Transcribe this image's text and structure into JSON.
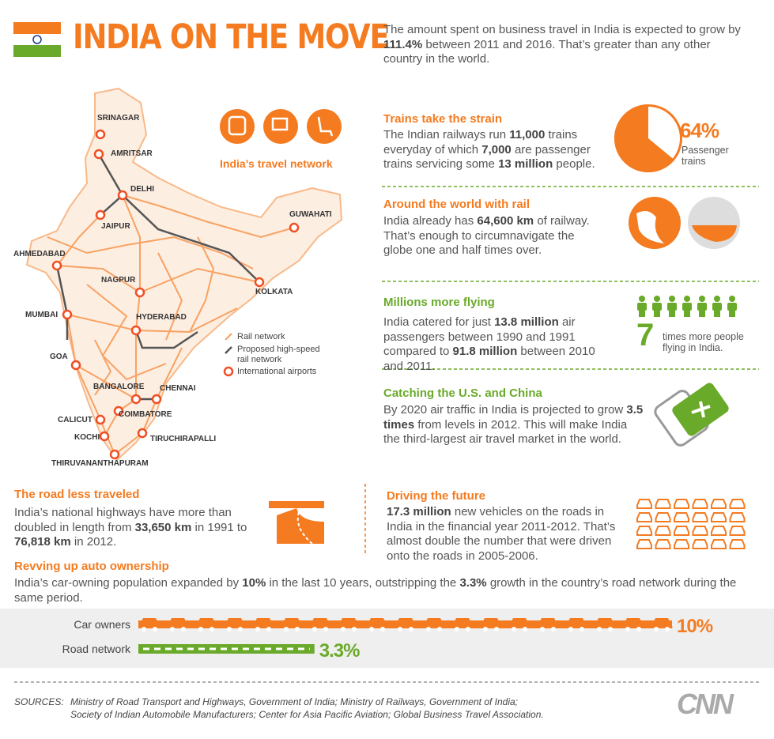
{
  "header": {
    "title": "INDIA ON THE MOVE",
    "intro": [
      "The amount spent on business travel in India is expected to grow by ",
      "111.4%",
      " between 2011 and 2016. That’s greater than any other country in the world."
    ]
  },
  "map": {
    "title": "India’s travel network",
    "cities": [
      "SRINAGAR",
      "AMRITSAR",
      "DELHI",
      "JAIPUR",
      "GUWAHATI",
      "AHMEDABAD",
      "KOLKATA",
      "NAGPUR",
      "MUMBAI",
      "HYDERABAD",
      "GOA",
      "BANGALORE",
      "CHENNAI",
      "COIMBATORE",
      "CALICUT",
      "KOCHI",
      "TIRUCHIRAPALLI",
      "THIRUVANANTHAPURAM"
    ],
    "legend": [
      "Rail network",
      "Proposed high-speed rail network",
      "International airports"
    ]
  },
  "trains": {
    "heading": "Trains take the strain",
    "text": [
      "The Indian railways run ",
      "11,000",
      " trains everyday of which ",
      "7,000",
      " are passenger trains servicing some ",
      "13 million",
      " people."
    ],
    "pie": {
      "value": 64,
      "label": "64%",
      "caption": "Passenger trains"
    }
  },
  "rail": {
    "heading": "Around the world with rail",
    "text": [
      "India already has ",
      "64,600 km",
      " of railway. That’s enough to circumnavigate the globe one and half times over."
    ]
  },
  "flying": {
    "heading": "Millions more flying",
    "text": [
      "India catered for just ",
      "13.8 million",
      " air passengers between 1990 and 1991 compared to ",
      "91.8 million",
      " between 2010 and 2011."
    ],
    "multiple": "7",
    "multiple_caption": "times more people flying in India."
  },
  "catching": {
    "heading": "Catching the U.S. and China",
    "text": [
      "By 2020 air traffic in India is projected to grow ",
      "3.5 times",
      " from levels in 2012. This will make India the third-largest air travel market in the world."
    ]
  },
  "road": {
    "heading": "The road less traveled",
    "text": [
      "India’s national highways have more than doubled in length from ",
      "33,650 km",
      " in 1991 to ",
      "76,818 km",
      " in 2012."
    ]
  },
  "driving": {
    "heading": "Driving the future",
    "text": [
      "",
      "17.3 million",
      " new vehicles on the roads in India in the financial year 2011-2012. That’s almost double the number that were driven onto the roads in 2005-2006."
    ]
  },
  "revving": {
    "heading": "Revving up auto ownership",
    "text": [
      "India’s car-owning population expanded by ",
      "10%",
      " in the last 10 years, outstripping the ",
      "3.3%",
      " growth in the country’s road network during the same period."
    ]
  },
  "chart_data": {
    "type": "bar",
    "categories": [
      "Car owners",
      "Road network"
    ],
    "values": [
      10,
      3.3
    ],
    "value_labels": [
      "10%",
      "3.3%"
    ],
    "colors": [
      "#f47b20",
      "#6aaa2a"
    ]
  },
  "footer": {
    "sources_label": "SOURCES:",
    "sources": [
      "Ministry of Road Transport and Highways, Government of India; Ministry of Railways, Government of India;",
      "Society of Indian Automobile Manufacturers; Center for Asia Pacific Aviation; Global Business Travel Association."
    ],
    "logo": "CNN"
  }
}
